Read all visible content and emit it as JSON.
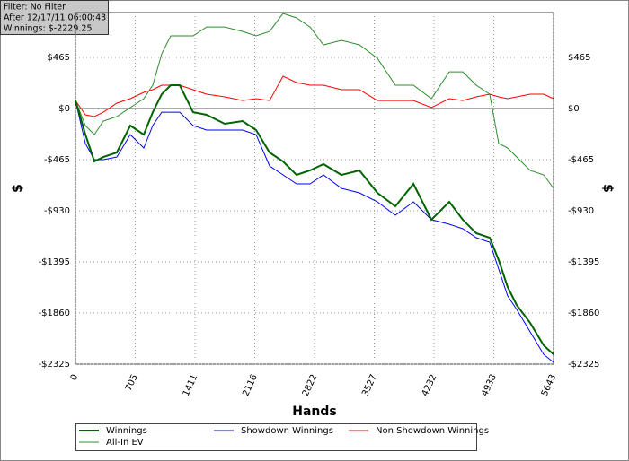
{
  "chart_data": {
    "type": "line",
    "annotations": [
      "Filter: No Filter",
      "After 12/17/11 06:00:43",
      "Winnings: $-2229.25"
    ],
    "xlabel": "Hands",
    "ylabel": "$",
    "x": [
      0,
      117,
      223,
      329,
      488,
      647,
      806,
      912,
      1018,
      1124,
      1230,
      1389,
      1548,
      1761,
      1973,
      2132,
      2291,
      2450,
      2609,
      2768,
      2928,
      3140,
      3352,
      3564,
      3776,
      3989,
      4201,
      4413,
      4572,
      4731,
      4890,
      4996,
      5102,
      5208,
      5367,
      5526,
      5643
    ],
    "series": [
      {
        "name": "Winnings",
        "color": "#006400",
        "width": 2,
        "values": [
          73,
          -235,
          -481,
          -441,
          -400,
          -155,
          -237,
          -33,
          131,
          212,
          212,
          -33,
          -57,
          -139,
          -114,
          -196,
          -400,
          -481,
          -604,
          -563,
          -506,
          -604,
          -563,
          -767,
          -889,
          -685,
          -1011,
          -848,
          -1011,
          -1134,
          -1175,
          -1379,
          -1624,
          -1787,
          -1950,
          -2154,
          -2236
        ]
      },
      {
        "name": "Showdown Winnings",
        "color": "#0000ff",
        "width": 1,
        "values": [
          73,
          -318,
          -465,
          -465,
          -441,
          -237,
          -359,
          -155,
          -33,
          -33,
          -33,
          -155,
          -196,
          -196,
          -196,
          -237,
          -522,
          -604,
          -685,
          -685,
          -604,
          -726,
          -767,
          -848,
          -971,
          -848,
          -1011,
          -1052,
          -1093,
          -1175,
          -1216,
          -1461,
          -1705,
          -1827,
          -2031,
          -2236,
          -2309
        ]
      },
      {
        "name": "Non Showdown Winnings",
        "color": "#ff0000",
        "width": 1,
        "values": [
          73,
          -57,
          -73,
          -33,
          49,
          90,
          147,
          171,
          212,
          212,
          212,
          171,
          131,
          106,
          73,
          90,
          73,
          294,
          237,
          212,
          212,
          171,
          171,
          73,
          73,
          73,
          8,
          90,
          73,
          106,
          131,
          106,
          90,
          106,
          131,
          131,
          90
        ]
      },
      {
        "name": "All-In EV",
        "color": "#2e8b2e",
        "width": 1,
        "values": [
          73,
          -155,
          -237,
          -114,
          -73,
          8,
          90,
          212,
          498,
          661,
          661,
          661,
          742,
          742,
          701,
          661,
          701,
          865,
          824,
          742,
          579,
          620,
          579,
          457,
          212,
          212,
          90,
          334,
          334,
          212,
          131,
          -318,
          -359,
          -441,
          -563,
          -604,
          -726
        ]
      }
    ],
    "xlim": [
      0,
      5643
    ],
    "xticks": [
      0,
      705,
      1411,
      2116,
      2822,
      3527,
      4232,
      4938,
      5643
    ],
    "ylim": [
      -2325,
      873
    ],
    "yticks": [
      {
        "value": 465,
        "label": "$465"
      },
      {
        "value": 0,
        "label": "$0"
      },
      {
        "value": -465,
        "label": "-$465"
      },
      {
        "value": -930,
        "label": "-$930"
      },
      {
        "value": -1395,
        "label": "-$1395"
      },
      {
        "value": -1860,
        "label": "-$1860"
      },
      {
        "value": -2325,
        "label": "-$2325"
      }
    ],
    "grid": true
  }
}
